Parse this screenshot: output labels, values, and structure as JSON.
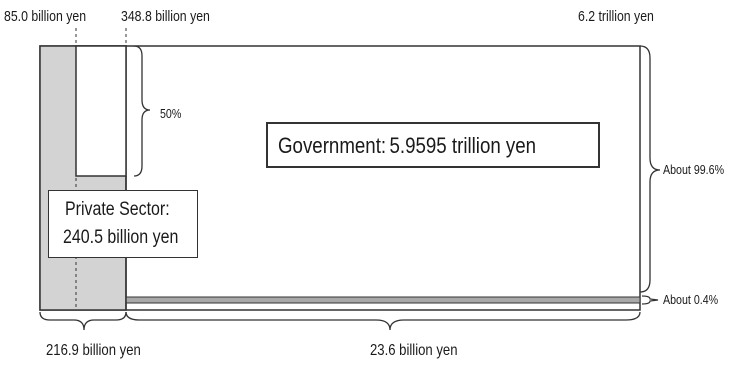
{
  "labels": {
    "top_left": "85.0 billion yen",
    "top_mid": "348.8 billion yen",
    "top_right": "6.2 trillion yen",
    "half_pct": "50%",
    "about_high": "About 99.6%",
    "about_low": "About 0.4%",
    "bottom_left": "216.9 billion yen",
    "bottom_right": "23.6 billion yen"
  },
  "government": {
    "name": "Government",
    "separator": ":",
    "amount": "5.9595 trillion yen"
  },
  "private_sector": {
    "line1": "Private Sector:",
    "line2": "240.5 billion yen"
  },
  "colors": {
    "private_fill": "#d3d3d3",
    "gov_strip": "#a9a9a9",
    "stroke": "#333333",
    "background": "#ffffff"
  }
}
